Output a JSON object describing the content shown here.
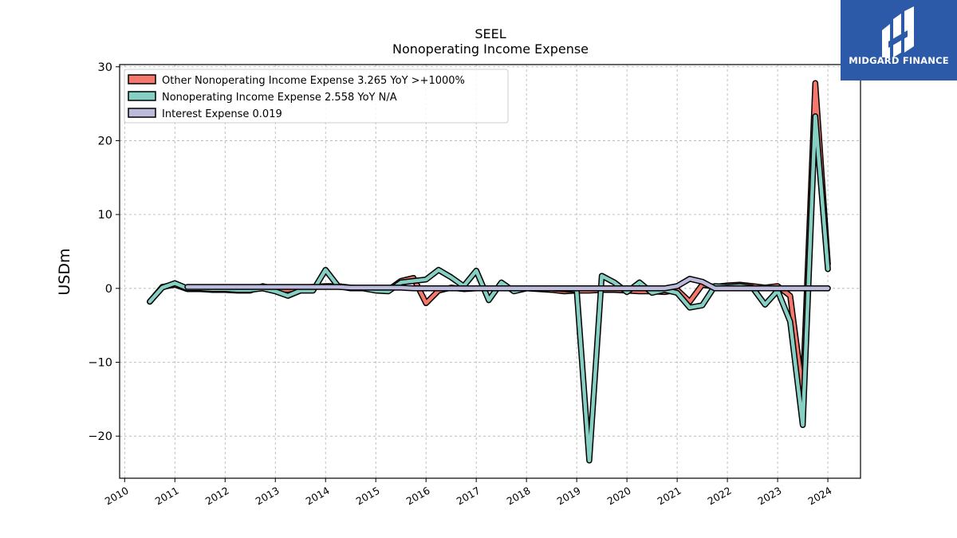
{
  "chart_data": {
    "type": "line",
    "title": "SEEL",
    "subtitle": "Nonoperating Income Expense",
    "xlabel": "",
    "ylabel": "USDm",
    "xlim": [
      2009.9,
      2024.65
    ],
    "ylim": [
      -25.7,
      30.3
    ],
    "yticks": [
      -20,
      -10,
      0,
      10,
      20,
      30
    ],
    "ytick_labels": [
      "−20",
      "−10",
      "0",
      "10",
      "20",
      "30"
    ],
    "xticks": [
      2010,
      2011,
      2012,
      2013,
      2014,
      2015,
      2016,
      2017,
      2018,
      2019,
      2020,
      2021,
      2022,
      2023,
      2024
    ],
    "xtick_labels": [
      "2010",
      "2011",
      "2012",
      "2013",
      "2014",
      "2015",
      "2016",
      "2017",
      "2018",
      "2019",
      "2020",
      "2021",
      "2022",
      "2023",
      "2024"
    ],
    "grid": true,
    "legend_position": "top-left",
    "series": [
      {
        "name": "Other Nonoperating Income Expense",
        "legend_label": "Other Nonoperating Income Expense  3.265 YoY >+1000%",
        "color": "#f4796c",
        "x": [
          2010.5,
          2010.75,
          2011.0,
          2011.25,
          2011.5,
          2011.75,
          2012.0,
          2012.25,
          2012.5,
          2012.75,
          2013.0,
          2013.25,
          2013.5,
          2013.75,
          2014.0,
          2014.25,
          2014.5,
          2014.75,
          2015.0,
          2015.25,
          2015.5,
          2015.75,
          2016.0,
          2016.25,
          2016.5,
          2016.75,
          2017.0,
          2017.25,
          2017.5,
          2017.75,
          2018.0,
          2018.25,
          2018.5,
          2018.75,
          2019.0,
          2019.25,
          2019.5,
          2019.75,
          2020.0,
          2020.25,
          2020.5,
          2020.75,
          2021.0,
          2021.25,
          2021.5,
          2021.75,
          2022.0,
          2022.25,
          2022.5,
          2022.75,
          2023.0,
          2023.25,
          2023.5,
          2023.75,
          2024.0
        ],
        "y": [
          -1.8,
          0.2,
          0.5,
          -0.1,
          -0.1,
          -0.2,
          -0.2,
          -0.3,
          -0.3,
          0.3,
          -0.1,
          -0.2,
          0.1,
          0.2,
          0.3,
          0.3,
          0.1,
          0.0,
          -0.1,
          -0.2,
          1.0,
          1.4,
          -2.0,
          -0.3,
          0.1,
          -0.1,
          0.0,
          0.0,
          0.0,
          0.0,
          0.0,
          -0.1,
          -0.2,
          -0.4,
          -0.3,
          -0.3,
          -0.2,
          -0.2,
          -0.3,
          -0.4,
          -0.4,
          -0.5,
          -0.2,
          -1.8,
          0.5,
          0.2,
          0.4,
          0.5,
          0.3,
          0.1,
          0.3,
          -1.0,
          -14.0,
          27.8,
          3.3
        ]
      },
      {
        "name": "Nonoperating Income Expense",
        "legend_label": "Nonoperating Income Expense  2.558 YoY N/A",
        "color": "#86d0c3",
        "x": [
          2010.5,
          2010.75,
          2011.0,
          2011.25,
          2011.5,
          2011.75,
          2012.0,
          2012.25,
          2012.5,
          2012.75,
          2013.0,
          2013.25,
          2013.5,
          2013.75,
          2014.0,
          2014.25,
          2014.5,
          2014.75,
          2015.0,
          2015.25,
          2015.5,
          2015.75,
          2016.0,
          2016.25,
          2016.5,
          2016.75,
          2017.0,
          2017.25,
          2017.5,
          2017.75,
          2018.0,
          2018.25,
          2018.5,
          2018.75,
          2019.0,
          2019.25,
          2019.5,
          2019.75,
          2020.0,
          2020.25,
          2020.5,
          2020.75,
          2021.0,
          2021.25,
          2021.5,
          2021.75,
          2022.0,
          2022.25,
          2022.5,
          2022.75,
          2023.0,
          2023.25,
          2023.5,
          2023.75,
          2024.0
        ],
        "y": [
          -1.8,
          0.1,
          0.7,
          0.0,
          0.0,
          -0.1,
          -0.1,
          -0.2,
          -0.2,
          0.0,
          -0.4,
          -1.0,
          -0.3,
          -0.3,
          2.5,
          0.3,
          0.0,
          0.0,
          -0.3,
          -0.4,
          0.8,
          1.0,
          1.2,
          2.5,
          1.5,
          0.3,
          2.4,
          -1.6,
          0.8,
          -0.4,
          0.0,
          0.0,
          0.0,
          -0.1,
          -0.2,
          -23.3,
          1.7,
          0.8,
          -0.5,
          0.8,
          -0.6,
          -0.2,
          -0.6,
          -2.6,
          -2.3,
          0.3,
          0.2,
          0.3,
          0.1,
          -2.2,
          -0.3,
          -4.5,
          -18.5,
          23.3,
          2.6
        ]
      },
      {
        "name": "Interest Expense",
        "legend_label": "Interest Expense  0.019",
        "color": "#bdbbdb",
        "x": [
          2011.25,
          2011.5,
          2011.75,
          2012.0,
          2012.25,
          2012.5,
          2012.75,
          2013.0,
          2013.25,
          2013.5,
          2013.75,
          2014.0,
          2014.25,
          2014.5,
          2014.75,
          2015.0,
          2015.25,
          2015.5,
          2015.75,
          2016.0,
          2016.25,
          2016.5,
          2016.75,
          2017.0,
          2017.25,
          2017.5,
          2017.75,
          2018.0,
          2018.25,
          2018.5,
          2018.75,
          2019.0,
          2019.25,
          2019.5,
          2019.75,
          2020.0,
          2020.25,
          2020.5,
          2020.75,
          2021.0,
          2021.25,
          2021.5,
          2021.75,
          2022.0,
          2022.25,
          2022.5,
          2022.75,
          2023.0,
          2023.25,
          2023.5,
          2023.75,
          2024.0
        ],
        "y": [
          0.2,
          0.2,
          0.2,
          0.2,
          0.2,
          0.2,
          0.2,
          0.2,
          0.2,
          0.2,
          0.2,
          0.2,
          0.2,
          0.1,
          0.1,
          0.1,
          0.1,
          0.1,
          0.0,
          0.0,
          0.0,
          0.0,
          0.0,
          0.0,
          0.0,
          0.0,
          0.0,
          0.0,
          0.0,
          0.0,
          0.0,
          0.0,
          0.0,
          0.0,
          0.0,
          0.0,
          0.0,
          0.0,
          0.0,
          0.3,
          1.3,
          0.9,
          0.0,
          0.0,
          0.0,
          0.0,
          0.0,
          0.0,
          0.0,
          0.0,
          0.0,
          0.0
        ]
      }
    ]
  },
  "branding": {
    "logo_text": "MIDGARD FINANCE",
    "logo_color": "#2c5aa8"
  }
}
